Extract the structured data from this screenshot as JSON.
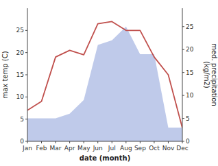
{
  "chart_data": {
    "type": "line",
    "categories": [
      "Jan",
      "Feb",
      "Mar",
      "Apr",
      "May",
      "Jun",
      "Jul",
      "Aug",
      "Sep",
      "Oct",
      "Nov",
      "Dec"
    ],
    "xlabel": "date (month)",
    "ylabel": "max temp (C)",
    "y2label": "med. precipitation\n(kg/m2)",
    "ylim": [
      0,
      30
    ],
    "yticks": [
      0,
      5,
      10,
      15,
      20,
      25
    ],
    "y2lim": [
      0,
      29
    ],
    "y2ticks": [
      0,
      5,
      10,
      15,
      20,
      25
    ],
    "series": [
      {
        "type": "line",
        "color": "#c0504d",
        "values": [
          7,
          9,
          19,
          20.5,
          19.5,
          26.5,
          27,
          25,
          25,
          19,
          15,
          3
        ]
      },
      {
        "type": "area",
        "axis": "y2",
        "color": "#b8c4e8",
        "values": [
          5,
          5,
          5,
          6,
          9,
          21,
          22,
          25,
          19,
          19,
          3,
          3
        ]
      }
    ]
  }
}
